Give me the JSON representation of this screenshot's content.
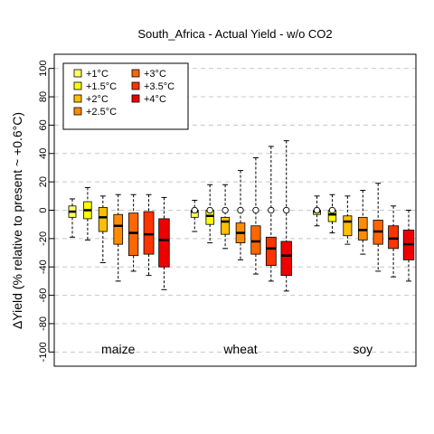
{
  "chart_data": {
    "type": "box",
    "title": "South_Africa - Actual Yield - w/o CO2",
    "ylabel": "ΔYield (% relative to present ~ +0.6°C)",
    "ylim": [
      -110,
      110
    ],
    "yticks": [
      -100,
      -80,
      -60,
      -40,
      -20,
      0,
      20,
      40,
      60,
      80,
      100
    ],
    "grid": "horizontal dashed",
    "legend_placement": "top-left",
    "legend": [
      {
        "label": "+1°C",
        "color": "#ffff66"
      },
      {
        "label": "+1.5°C",
        "color": "#ffff00"
      },
      {
        "label": "+2°C",
        "color": "#ffbf00"
      },
      {
        "label": "+2.5°C",
        "color": "#ff8c00"
      },
      {
        "label": "+3°C",
        "color": "#ff6600"
      },
      {
        "label": "+3.5°C",
        "color": "#ff3300"
      },
      {
        "label": "+4°C",
        "color": "#ee0000"
      }
    ],
    "groups": [
      {
        "name": "maize",
        "boxes": [
          {
            "level": "+1°C",
            "min": -19,
            "q1": -5,
            "median": -1,
            "q3": 3,
            "max": 8
          },
          {
            "level": "+1.5°C",
            "min": -21,
            "q1": -6,
            "median": 0,
            "q3": 6,
            "max": 16
          },
          {
            "level": "+2°C",
            "min": -37,
            "q1": -15,
            "median": -5,
            "q3": 2,
            "max": 10
          },
          {
            "level": "+2.5°C",
            "min": -50,
            "q1": -24,
            "median": -11,
            "q3": -3,
            "max": 11
          },
          {
            "level": "+3°C",
            "min": -43,
            "q1": -32,
            "median": -16,
            "q3": -2,
            "max": 11
          },
          {
            "level": "+3.5°C",
            "min": -46,
            "q1": -31,
            "median": -17,
            "q3": -1,
            "max": 11
          },
          {
            "level": "+4°C",
            "min": -56,
            "q1": -40,
            "median": -21,
            "q3": -6,
            "max": 9
          }
        ]
      },
      {
        "name": "wheat",
        "boxes": [
          {
            "level": "+1°C",
            "min": -15,
            "q1": -5,
            "median": -1,
            "q3": 0,
            "max": 7,
            "circle": 0
          },
          {
            "level": "+1.5°C",
            "min": -23,
            "q1": -10,
            "median": -4,
            "q3": 0,
            "max": 18,
            "circle": 0
          },
          {
            "level": "+2°C",
            "min": -27,
            "q1": -17,
            "median": -8,
            "q3": -5,
            "max": 18,
            "circle": 0
          },
          {
            "level": "+2.5°C",
            "min": -35,
            "q1": -23,
            "median": -16,
            "q3": -9,
            "max": 28,
            "circle": 0
          },
          {
            "level": "+3°C",
            "min": -45,
            "q1": -31,
            "median": -22,
            "q3": -11,
            "max": 37,
            "circle": 0
          },
          {
            "level": "+3.5°C",
            "min": -50,
            "q1": -39,
            "median": -27,
            "q3": -19,
            "max": 45,
            "circle": 0
          },
          {
            "level": "+4°C",
            "min": -57,
            "q1": -46,
            "median": -32,
            "q3": -22,
            "max": 49,
            "circle": 0
          }
        ]
      },
      {
        "name": "soy",
        "boxes": [
          {
            "level": "+1°C",
            "min": -11,
            "q1": -3,
            "median": -1,
            "q3": 0,
            "max": 10,
            "circle": 0
          },
          {
            "level": "+1.5°C",
            "min": -16,
            "q1": -8,
            "median": -3,
            "q3": 0,
            "max": 11,
            "circle": 0
          },
          {
            "level": "+2°C",
            "min": -24,
            "q1": -18,
            "median": -8,
            "q3": -4,
            "max": 10
          },
          {
            "level": "+2.5°C",
            "min": -31,
            "q1": -21,
            "median": -14,
            "q3": -5,
            "max": 14
          },
          {
            "level": "+3°C",
            "min": -43,
            "q1": -24,
            "median": -15,
            "q3": -7,
            "max": 19
          },
          {
            "level": "+3.5°C",
            "min": -47,
            "q1": -27,
            "median": -20,
            "q3": -11,
            "max": 3
          },
          {
            "level": "+4°C",
            "min": -50,
            "q1": -35,
            "median": -24,
            "q3": -14,
            "max": 0
          }
        ]
      }
    ]
  }
}
